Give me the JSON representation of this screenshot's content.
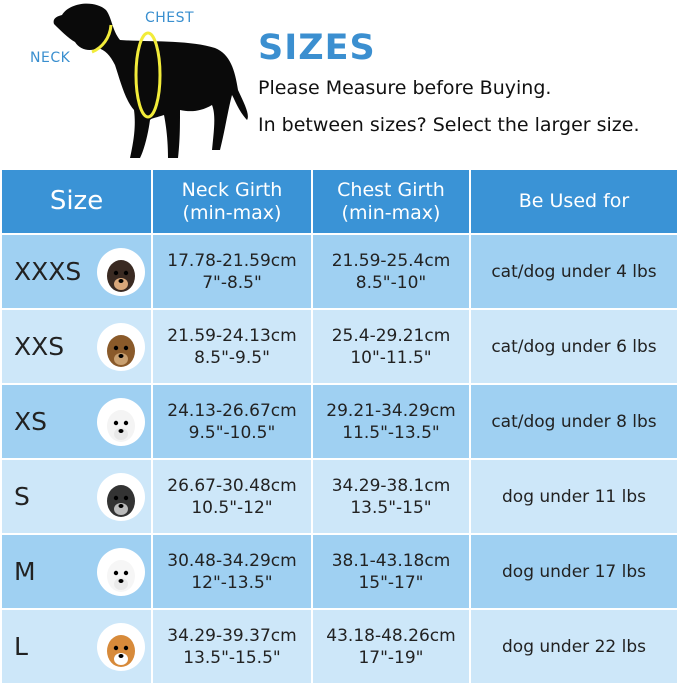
{
  "header": {
    "title": "SIZES",
    "line1": "Please Measure before Buying.",
    "line2": "In between sizes? Select the larger size.",
    "neck_label": "NECK",
    "chest_label": "CHEST"
  },
  "table": {
    "columns": [
      "Size",
      "Neck Girth\n(min-max)",
      "Chest Girth\n(min-max)",
      "Be Used for"
    ],
    "col_neck_1": "Neck Girth",
    "col_neck_2": "(min-max)",
    "col_chest_1": "Chest Girth",
    "col_chest_2": "(min-max)",
    "rows": [
      {
        "size": "XXXS",
        "neck_cm": "17.78-21.59cm",
        "neck_in": "7\"-8.5\"",
        "chest_cm": "21.59-25.4cm",
        "chest_in": "8.5\"-10\"",
        "use": "cat/dog under 4 lbs",
        "face": "chihuahua"
      },
      {
        "size": "XXS",
        "neck_cm": "21.59-24.13cm",
        "neck_in": "8.5\"-9.5\"",
        "chest_cm": "25.4-29.21cm",
        "chest_in": "10\"-11.5\"",
        "use": "cat/dog under 6 lbs",
        "face": "yorkie"
      },
      {
        "size": "XS",
        "neck_cm": "24.13-26.67cm",
        "neck_in": "9.5\"-10.5\"",
        "chest_cm": "29.21-34.29cm",
        "chest_in": "11.5\"-13.5\"",
        "use": "cat/dog under 8 lbs",
        "face": "maltese"
      },
      {
        "size": "S",
        "neck_cm": "26.67-30.48cm",
        "neck_in": "10.5\"-12\"",
        "chest_cm": "34.29-38.1cm",
        "chest_in": "13.5\"-15\"",
        "use": "dog under 11 lbs",
        "face": "schnauzer"
      },
      {
        "size": "M",
        "neck_cm": "30.48-34.29cm",
        "neck_in": "12\"-13.5\"",
        "chest_cm": "38.1-43.18cm",
        "chest_in": "15\"-17\"",
        "use": "dog under 17 lbs",
        "face": "bichon"
      },
      {
        "size": "L",
        "neck_cm": "34.29-39.37cm",
        "neck_in": "13.5\"-15.5\"",
        "chest_cm": "43.18-48.26cm",
        "chest_in": "17\"-19\"",
        "use": "dog under 22 lbs",
        "face": "corgi"
      }
    ]
  },
  "colors": {
    "accent": "#3a93d6",
    "row_dark": "#9fd0f2",
    "row_light": "#cde7f9",
    "collar": "#f2ec3a"
  }
}
